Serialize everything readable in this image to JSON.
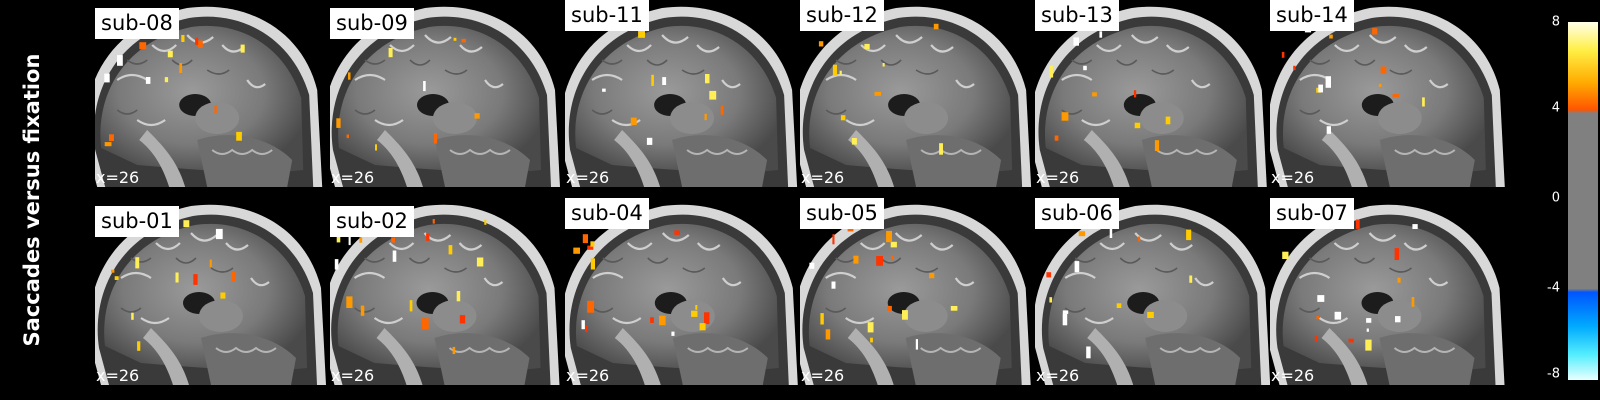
{
  "figure": {
    "row_label": "Saccades versus fixation",
    "coordinate_label": "x=26",
    "rows": [
      [
        "sub-08",
        "sub-09",
        "sub-11",
        "sub-12",
        "sub-13",
        "sub-14"
      ],
      [
        "sub-01",
        "sub-02",
        "sub-04",
        "sub-05",
        "sub-06",
        "sub-07"
      ]
    ],
    "colorbar": {
      "ticks": [
        "8",
        "4",
        "0",
        "-4",
        "-8"
      ],
      "range": [
        -8,
        8
      ],
      "threshold": 4,
      "positive_colors": [
        "#ff4400",
        "#ff9900",
        "#ffee00",
        "#ffffff"
      ],
      "negative_colors": [
        "#0044ff",
        "#00aaff",
        "#66ffff",
        "#ffffff"
      ],
      "mid_color": "#808080"
    }
  }
}
